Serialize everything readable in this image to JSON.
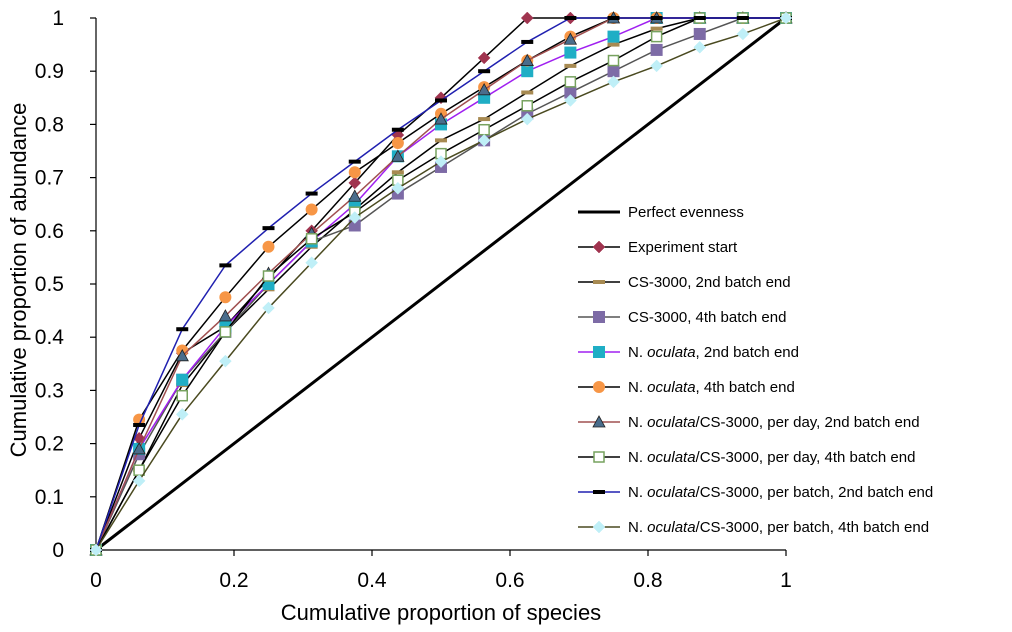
{
  "chart_data": {
    "type": "line",
    "title": "",
    "xlabel": "Cumulative proportion of species",
    "ylabel": "Cumulative proportion of abundance",
    "xlim": [
      0,
      1
    ],
    "ylim": [
      0,
      1
    ],
    "xticks": [
      0,
      0.2,
      0.4,
      0.6,
      0.8,
      1
    ],
    "yticks": [
      0,
      0.1,
      0.2,
      0.3,
      0.4,
      0.5,
      0.6,
      0.7,
      0.8,
      0.9,
      1
    ],
    "xtick_labels": [
      "0",
      "0.2",
      "0.4",
      "0.6",
      "0.8",
      "1"
    ],
    "ytick_labels": [
      "0",
      "0.1",
      "0.2",
      "0.3",
      "0.4",
      "0.5",
      "0.6",
      "0.7",
      "0.8",
      "0.9",
      "1"
    ],
    "grid": false,
    "legend_position": "right",
    "x": [
      0,
      0.0625,
      0.125,
      0.1875,
      0.25,
      0.3125,
      0.375,
      0.4375,
      0.5,
      0.5625,
      0.625,
      0.6875,
      0.75,
      0.8125,
      0.875,
      0.9375,
      1
    ],
    "series": [
      {
        "name_parts": [
          {
            "text": "Perfect evenness",
            "italic": false
          }
        ],
        "color": "#000000",
        "width": 3,
        "marker": "none",
        "marker_color": "#000000",
        "x": [
          0,
          1
        ],
        "values": [
          0,
          1
        ]
      },
      {
        "name_parts": [
          {
            "text": "Experiment start",
            "italic": false
          }
        ],
        "color": "#000000",
        "width": 1.5,
        "marker": "diamond",
        "marker_color": "#A0344F",
        "values": [
          0,
          0.21,
          0.37,
          0.42,
          0.51,
          0.6,
          0.69,
          0.78,
          0.85,
          0.925,
          1,
          1,
          1,
          1,
          1,
          1,
          1
        ]
      },
      {
        "name_parts": [
          {
            "text": "CS-3000, 2nd batch end",
            "italic": false
          }
        ],
        "color": "#000000",
        "width": 1.5,
        "marker": "dash",
        "marker_color": "#A78A52",
        "values": [
          0,
          0.15,
          0.31,
          0.41,
          0.49,
          0.57,
          0.64,
          0.71,
          0.77,
          0.81,
          0.86,
          0.91,
          0.95,
          0.98,
          1,
          1,
          1
        ]
      },
      {
        "name_parts": [
          {
            "text": "CS-3000, 4th batch end",
            "italic": false
          }
        ],
        "color": "#555555",
        "width": 1.5,
        "marker": "square",
        "marker_color": "#7D6BA6",
        "values": [
          0,
          0.18,
          0.32,
          0.41,
          0.5,
          0.58,
          0.61,
          0.67,
          0.72,
          0.77,
          0.82,
          0.86,
          0.9,
          0.94,
          0.97,
          1,
          1
        ]
      },
      {
        "name_parts": [
          {
            "text": "N. ",
            "italic": false
          },
          {
            "text": "oculata",
            "italic": true
          },
          {
            "text": ", 2nd batch end",
            "italic": false
          }
        ],
        "color": "#A020F0",
        "width": 1.5,
        "marker": "square",
        "marker_color": "#1FAEC5",
        "values": [
          0,
          0.19,
          0.32,
          0.42,
          0.5,
          0.58,
          0.65,
          0.74,
          0.8,
          0.85,
          0.9,
          0.935,
          0.965,
          1,
          1,
          1,
          1
        ]
      },
      {
        "name_parts": [
          {
            "text": "N. ",
            "italic": false
          },
          {
            "text": "oculata",
            "italic": true
          },
          {
            "text": ", 4th batch end",
            "italic": false
          }
        ],
        "color": "#000000",
        "width": 1.5,
        "marker": "circle",
        "marker_color": "#F79646",
        "values": [
          0,
          0.245,
          0.375,
          0.475,
          0.57,
          0.64,
          0.71,
          0.765,
          0.82,
          0.87,
          0.92,
          0.965,
          1,
          1,
          1,
          1,
          1
        ]
      },
      {
        "name_parts": [
          {
            "text": "N. ",
            "italic": false
          },
          {
            "text": "oculata",
            "italic": true
          },
          {
            "text": "/CS-3000, per day, 2nd batch end",
            "italic": false
          }
        ],
        "color": "#A05050",
        "width": 1.5,
        "marker": "triangle",
        "marker_color": "#4A6D8C",
        "values": [
          0,
          0.19,
          0.365,
          0.44,
          0.52,
          0.595,
          0.665,
          0.74,
          0.81,
          0.865,
          0.92,
          0.96,
          1,
          1,
          1,
          1,
          1
        ]
      },
      {
        "name_parts": [
          {
            "text": "N. ",
            "italic": false
          },
          {
            "text": "oculata",
            "italic": true
          },
          {
            "text": "/CS-3000, per day, 4th batch end",
            "italic": false
          }
        ],
        "color": "#000000",
        "width": 1.5,
        "marker": "hollow-square",
        "marker_color": "#77A25F",
        "values": [
          0,
          0.15,
          0.29,
          0.41,
          0.515,
          0.585,
          0.635,
          0.695,
          0.745,
          0.79,
          0.835,
          0.88,
          0.92,
          0.965,
          1,
          1,
          1
        ]
      },
      {
        "name_parts": [
          {
            "text": "N. ",
            "italic": false
          },
          {
            "text": "oculata",
            "italic": true
          },
          {
            "text": "/CS-3000, per batch, 2nd batch end",
            "italic": false
          }
        ],
        "color": "#2020B0",
        "width": 1.5,
        "marker": "dash",
        "marker_color": "#000000",
        "values": [
          0,
          0.235,
          0.415,
          0.535,
          0.605,
          0.67,
          0.73,
          0.79,
          0.845,
          0.9,
          0.955,
          1,
          1,
          1,
          1,
          1,
          1
        ]
      },
      {
        "name_parts": [
          {
            "text": "N. ",
            "italic": false
          },
          {
            "text": "oculata",
            "italic": true
          },
          {
            "text": "/CS-3000, per batch, 4th batch end",
            "italic": false
          }
        ],
        "color": "#4A4A20",
        "width": 1.5,
        "marker": "diamond",
        "marker_color": "#BFEFF7",
        "values": [
          0,
          0.13,
          0.255,
          0.355,
          0.455,
          0.54,
          0.625,
          0.68,
          0.73,
          0.77,
          0.81,
          0.845,
          0.88,
          0.91,
          0.945,
          0.97,
          1
        ]
      }
    ]
  }
}
